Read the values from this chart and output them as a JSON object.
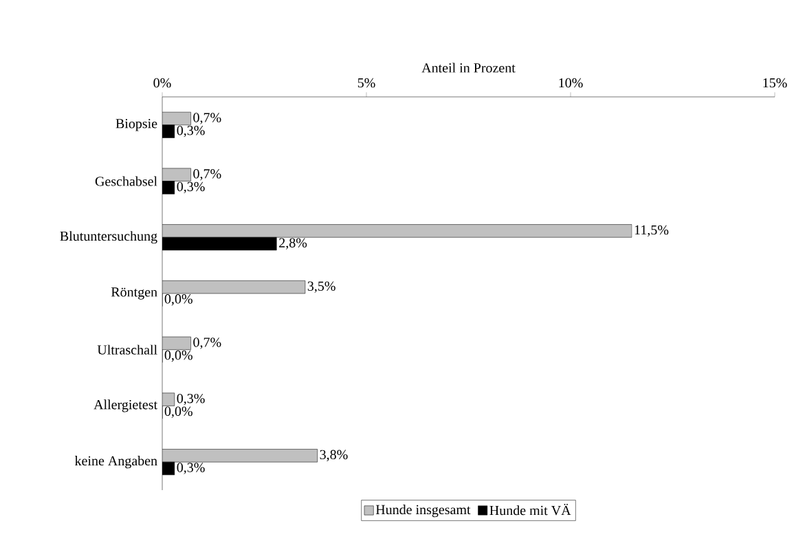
{
  "chart_data": {
    "type": "bar",
    "orientation": "horizontal",
    "xlabel": "Anteil in Prozent",
    "categories": [
      "Biopsie",
      "Geschabsel",
      "Blutuntersuchung",
      "Röntgen",
      "Ultraschall",
      "Allergietest",
      "keine Angaben"
    ],
    "series": [
      {
        "name": "Hunde insgesamt",
        "color": "#c0c0c0",
        "values": [
          0.7,
          0.7,
          11.5,
          3.5,
          0.7,
          0.3,
          3.8
        ],
        "value_labels": [
          "0,7%",
          "0,7%",
          "11,5%",
          "3,5%",
          "0,7%",
          "0,3%",
          "3,8%"
        ]
      },
      {
        "name": "Hunde mit VÄ",
        "color": "#000000",
        "values": [
          0.3,
          0.3,
          2.8,
          0.0,
          0.0,
          0.0,
          0.3
        ],
        "value_labels": [
          "0,3%",
          "0,3%",
          "2,8%",
          "0,0%",
          "0,0%",
          "0,0%",
          "0,3%"
        ]
      }
    ],
    "xlim": [
      0,
      15
    ],
    "xticks": [
      {
        "value": 0,
        "label": "0%"
      },
      {
        "value": 5,
        "label": "5%"
      },
      {
        "value": 10,
        "label": "10%"
      },
      {
        "value": 15,
        "label": "15%"
      }
    ],
    "legend": "bottom"
  }
}
